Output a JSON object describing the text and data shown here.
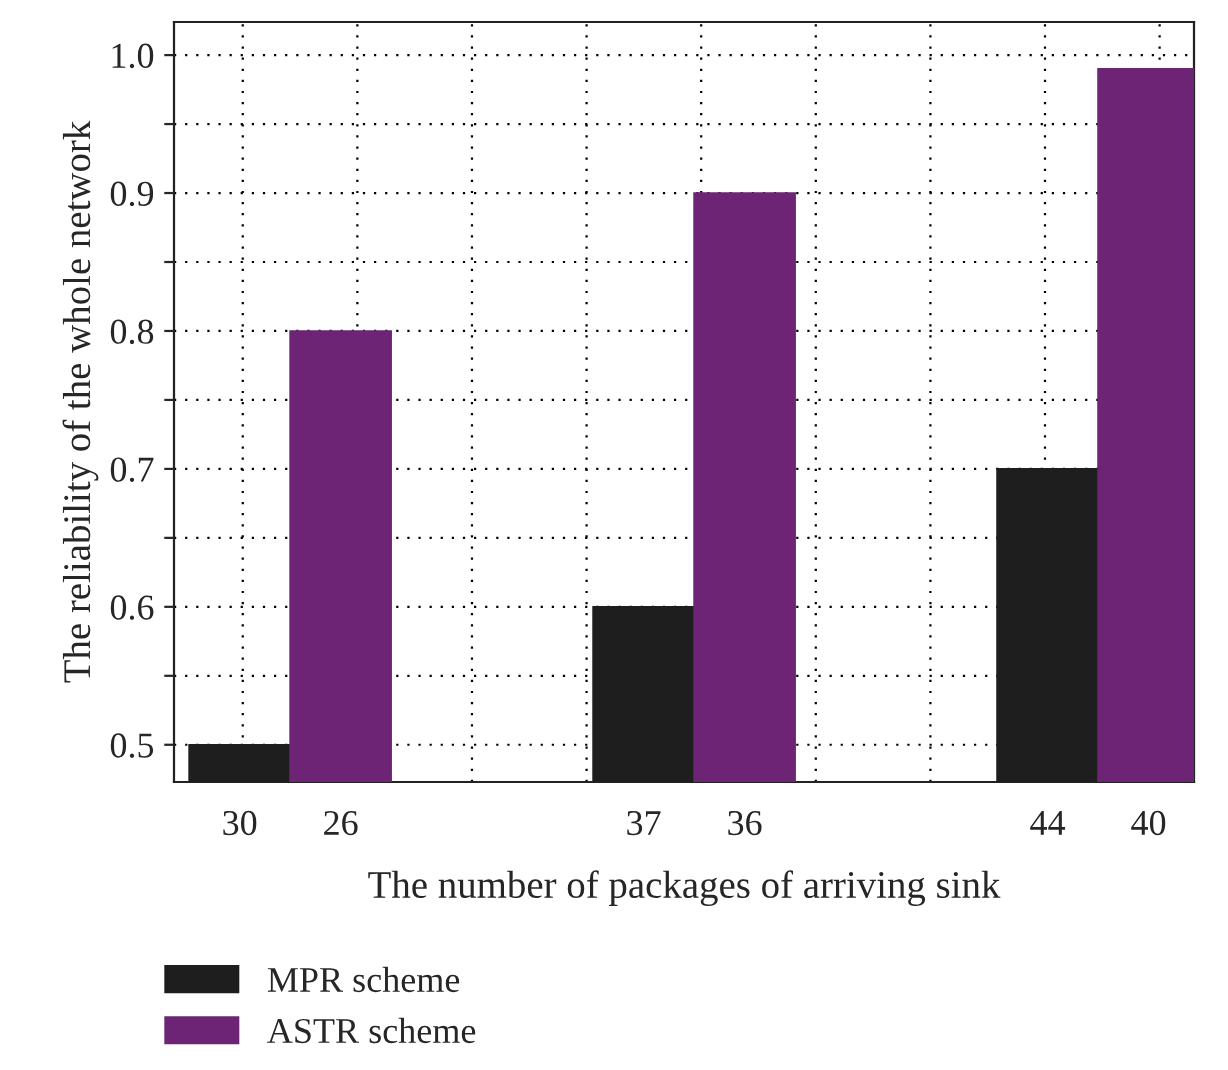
{
  "chart_data": {
    "type": "bar",
    "xlabel": "The number of packages of arriving sink",
    "ylabel": "The reliability of the whole network",
    "categories": [
      "30",
      "26",
      null,
      null,
      "37",
      "36",
      null,
      null,
      "44",
      "40"
    ],
    "series": [
      {
        "name": "MPR scheme",
        "color": "#1e1e1e",
        "values": [
          0.5,
          null,
          null,
          null,
          0.6,
          null,
          null,
          null,
          0.7,
          null
        ]
      },
      {
        "name": "ASTR scheme",
        "color": "#6e2475",
        "values": [
          null,
          0.8,
          null,
          null,
          null,
          0.9,
          null,
          null,
          null,
          0.99
        ]
      }
    ],
    "ylim": [
      0.473,
      1.024
    ],
    "yticks": [
      0.5,
      {
        "value": 0.55,
        "label": null
      },
      0.6,
      {
        "value": 0.65,
        "label": null
      },
      0.7,
      {
        "value": 0.75,
        "label": null
      },
      0.8,
      {
        "value": 0.85,
        "label": null
      },
      0.9,
      {
        "value": 0.95,
        "label": null
      },
      {
        "value": 1.0,
        "label": "1.0"
      }
    ],
    "grid": true,
    "legend": "bottom"
  }
}
